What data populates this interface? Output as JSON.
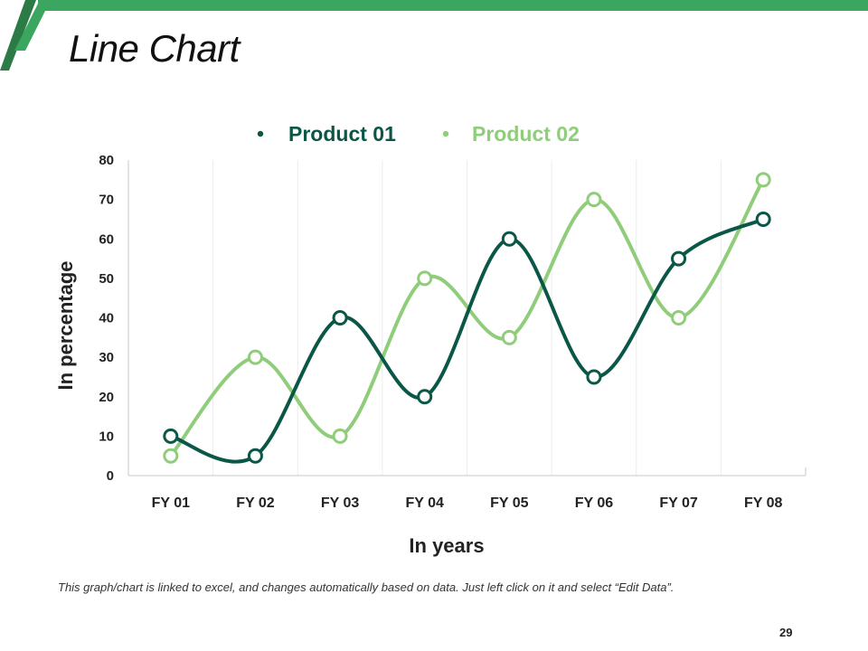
{
  "slide": {
    "title": "Line Chart",
    "page_number": "29",
    "footnote": "This graph/chart is linked to excel, and changes automatically based on data. Just left click on it and select “Edit Data”."
  },
  "colors": {
    "accent_green": "#3aa65f",
    "dark_green": "#2c7a45",
    "series1": "#0a5747",
    "series2": "#8fcd7b"
  },
  "chart_data": {
    "type": "line",
    "categories": [
      "FY 01",
      "FY 02",
      "FY 03",
      "FY 04",
      "FY 05",
      "FY 06",
      "FY 07",
      "FY 08"
    ],
    "series": [
      {
        "name": "Product 01",
        "values": [
          10,
          5,
          40,
          20,
          60,
          25,
          55,
          65
        ]
      },
      {
        "name": "Product 02",
        "values": [
          5,
          30,
          10,
          50,
          35,
          70,
          40,
          75
        ]
      }
    ],
    "xlabel": "In years",
    "ylabel": "In percentage",
    "ylim": [
      0,
      80
    ],
    "yticks": [
      "0",
      "10",
      "20",
      "30",
      "40",
      "50",
      "60",
      "70",
      "80"
    ],
    "legend_position": "top-center",
    "smooth": true
  }
}
